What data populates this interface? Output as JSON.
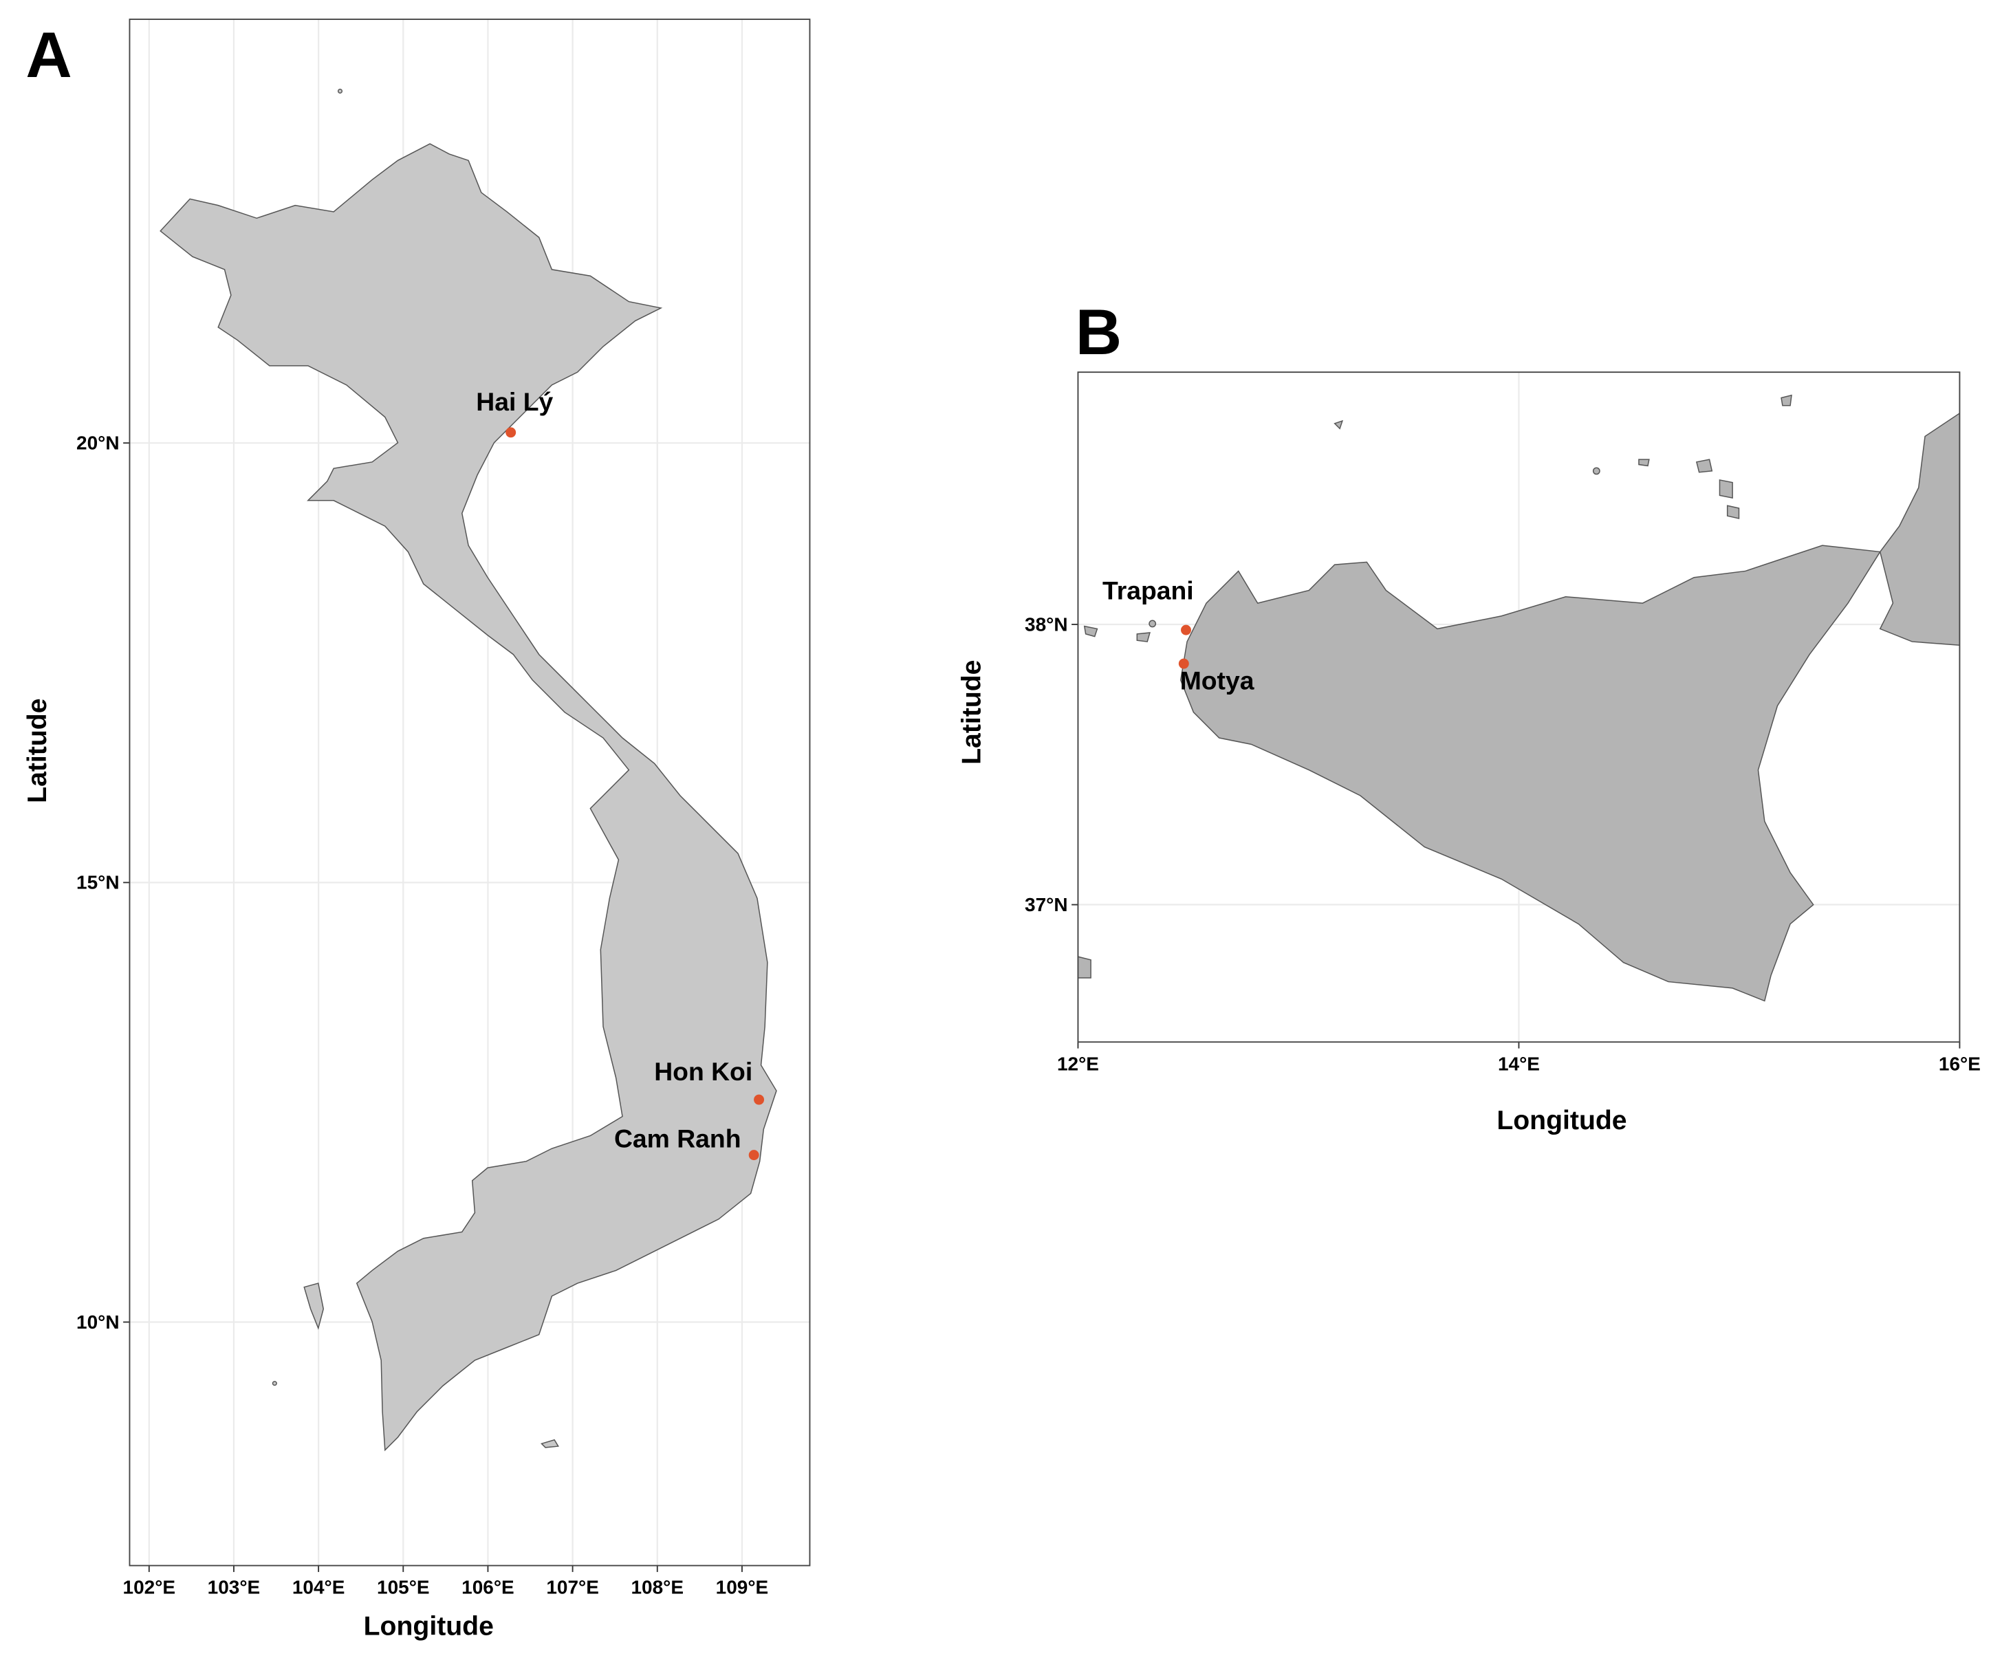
{
  "chart_data": [
    {
      "type": "map",
      "panel": "A",
      "xlabel": "Longitude",
      "ylabel": "Latitude",
      "xlim": [
        101.77,
        109.8
      ],
      "ylim": [
        7.23,
        24.82
      ],
      "xticks": [
        {
          "value": 102,
          "label": "102°E"
        },
        {
          "value": 103,
          "label": "103°E"
        },
        {
          "value": 104,
          "label": "104°E"
        },
        {
          "value": 105,
          "label": "105°E"
        },
        {
          "value": 106,
          "label": "106°E"
        },
        {
          "value": 107,
          "label": "107°E"
        },
        {
          "value": 108,
          "label": "108°E"
        },
        {
          "value": 109,
          "label": "109°E"
        }
      ],
      "yticks": [
        {
          "value": 10,
          "label": "10°N"
        },
        {
          "value": 15,
          "label": "15°N"
        },
        {
          "value": 20,
          "label": "20°N"
        }
      ],
      "grid": true,
      "color": "#e0532c",
      "sites": [
        "Hai Lý",
        "Hon Koi",
        "Cam Ranh"
      ],
      "x": [
        106.27,
        109.2,
        109.14
      ],
      "y": [
        20.12,
        12.53,
        11.9
      ]
    },
    {
      "type": "map",
      "panel": "B",
      "xlabel": "Longitude",
      "ylabel": "Latitude",
      "xlim": [
        12,
        16
      ],
      "ylim": [
        36.51,
        38.9
      ],
      "xticks": [
        {
          "value": 12,
          "label": "12°E"
        },
        {
          "value": 14,
          "label": "14°E"
        },
        {
          "value": 16,
          "label": "16°E"
        }
      ],
      "yticks": [
        {
          "value": 37,
          "label": "37°N"
        },
        {
          "value": 38,
          "label": "38°N"
        }
      ],
      "grid": true,
      "color": "#e0532c",
      "sites": [
        "Trapani",
        "Motya"
      ],
      "x": [
        12.49,
        12.48
      ],
      "y": [
        37.98,
        37.86
      ]
    }
  ]
}
